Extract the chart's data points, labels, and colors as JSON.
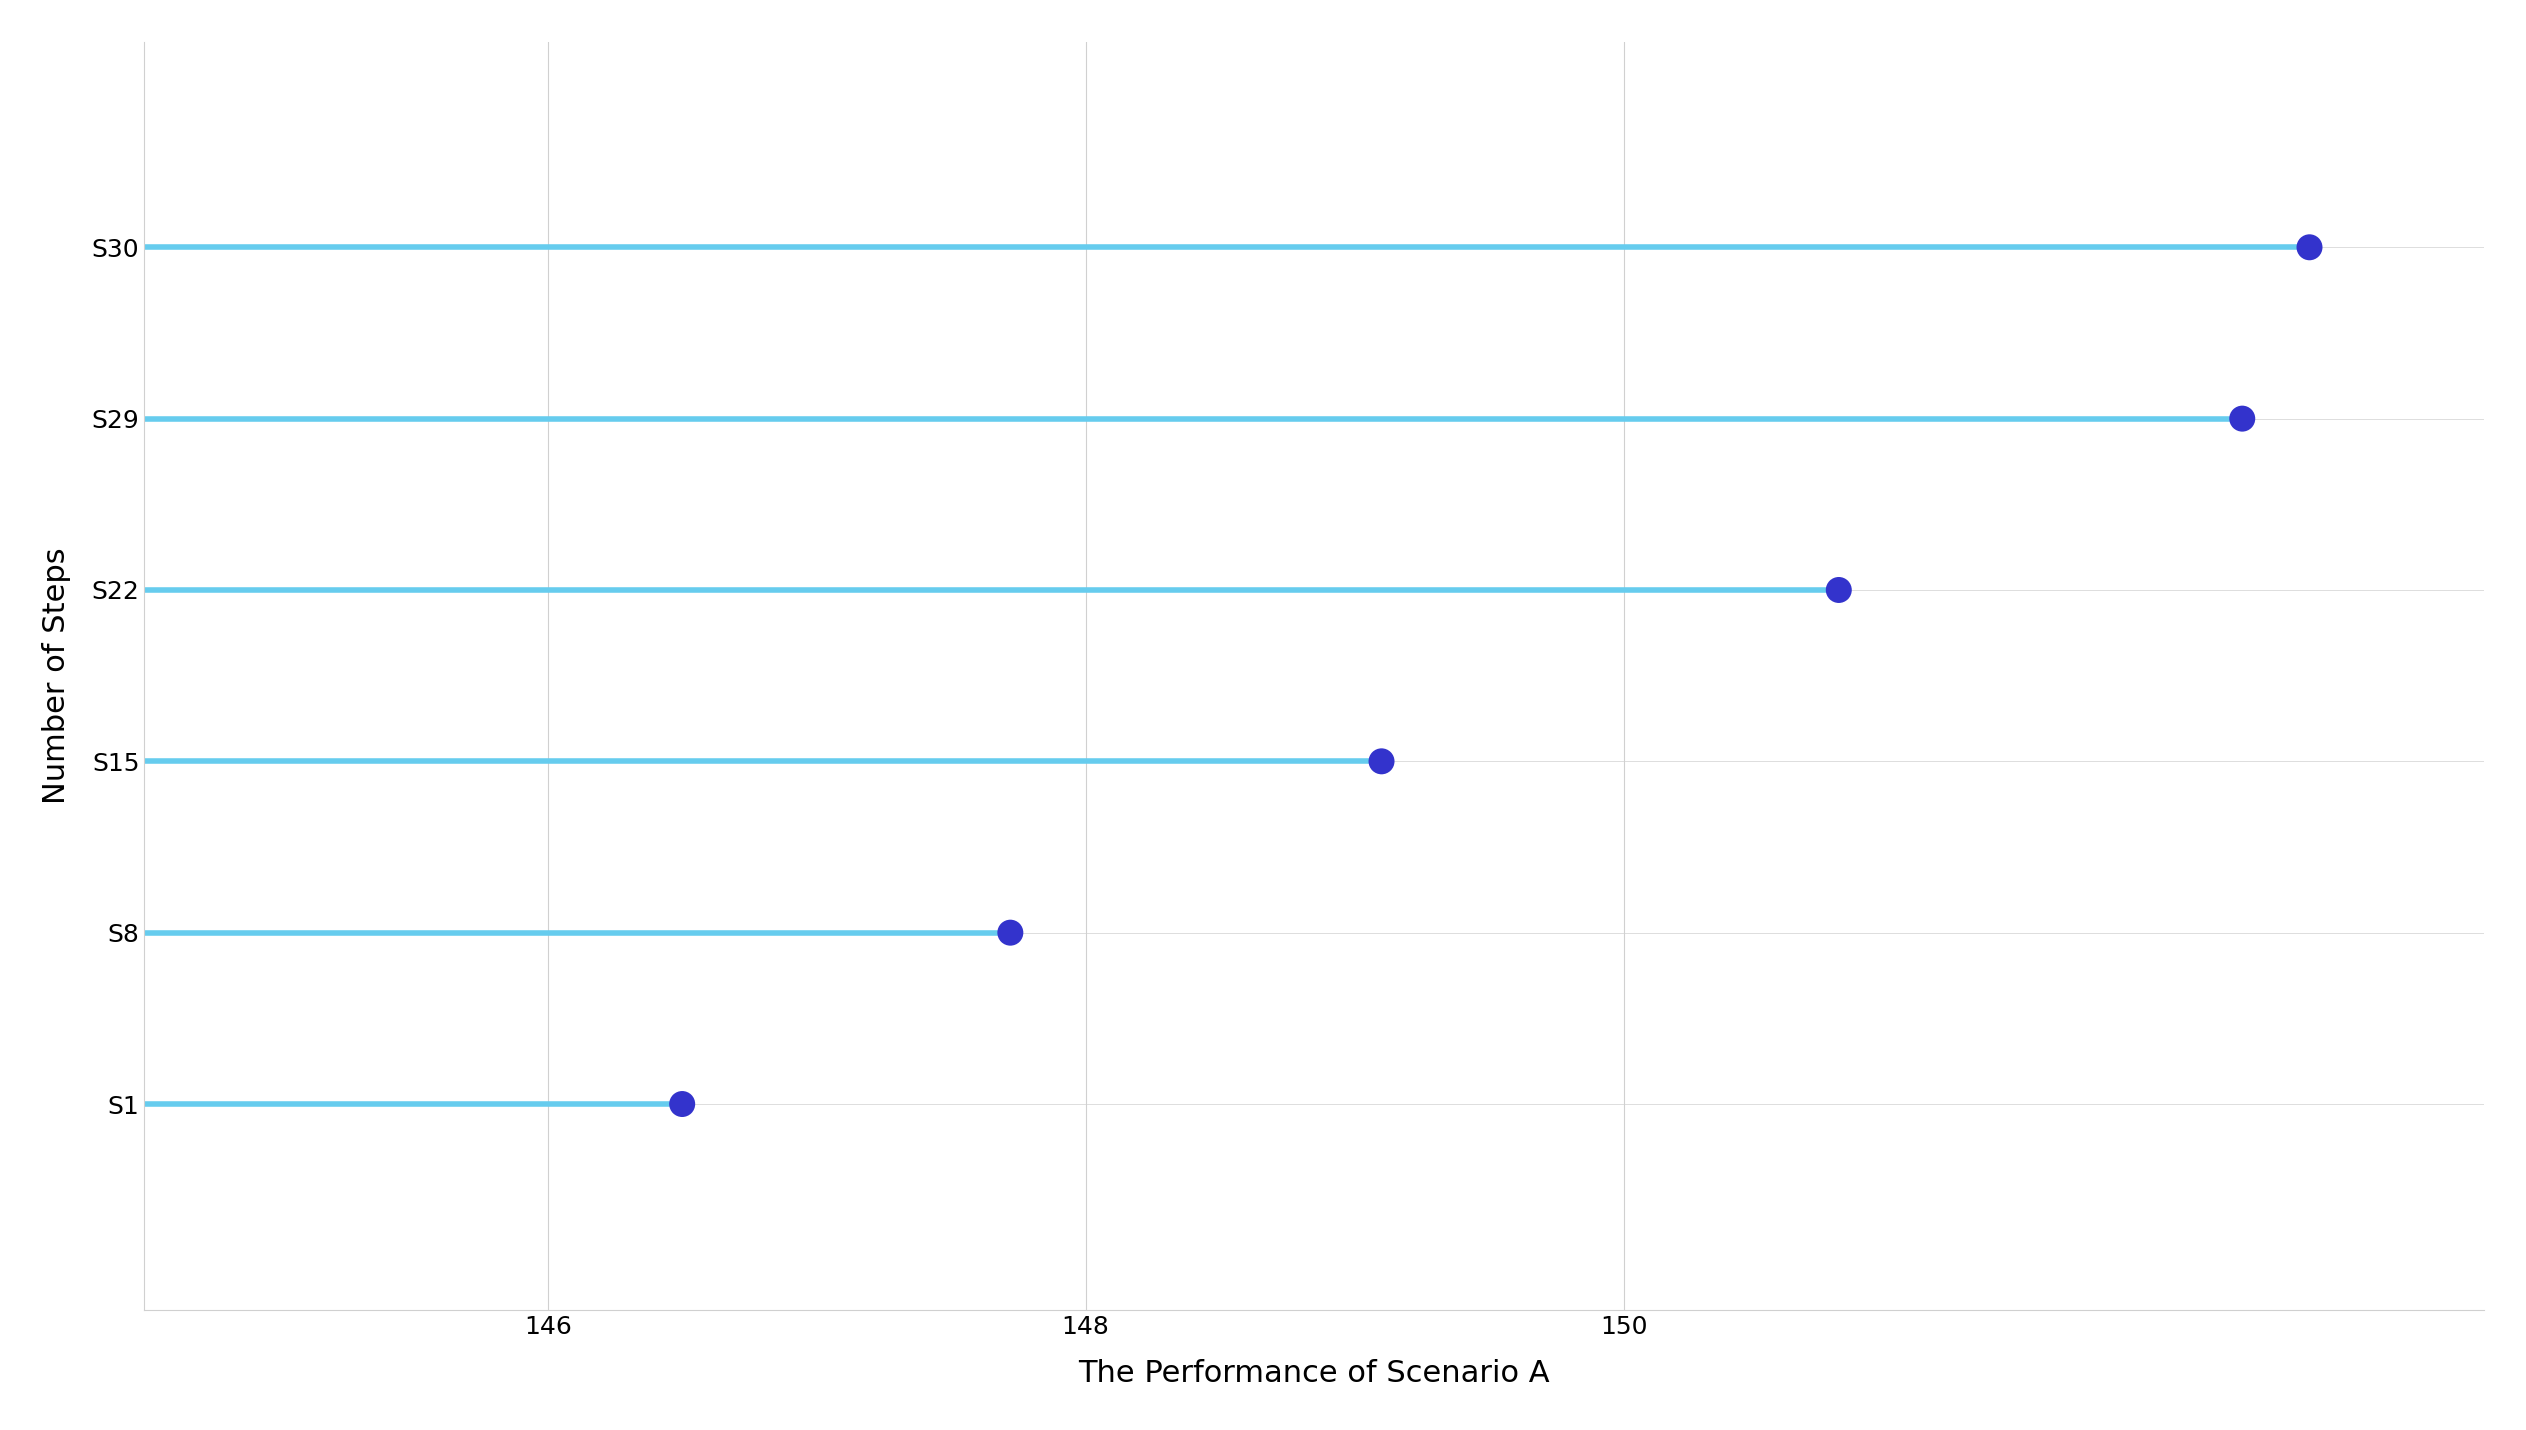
{
  "categories": [
    "S1",
    "S8",
    "S15",
    "S22",
    "S29",
    "S30"
  ],
  "values": [
    146.5,
    147.72,
    149.1,
    150.8,
    152.3,
    152.55
  ],
  "line_start": 144.5,
  "dot_color": "#3333cc",
  "line_color": "#66ccee",
  "xlabel": "The Performance of Scenario A",
  "ylabel": "Number of Steps",
  "xlim": [
    144.5,
    153.2
  ],
  "xticks": [
    146,
    148,
    150
  ],
  "background_color": "#ffffff",
  "grid_color": "#d0d0d0",
  "xlabel_fontsize": 22,
  "ylabel_fontsize": 22,
  "tick_fontsize": 18,
  "dot_size": 350,
  "line_width": 4.0,
  "ylim_bottom": -1.2,
  "ylim_top": 6.2
}
